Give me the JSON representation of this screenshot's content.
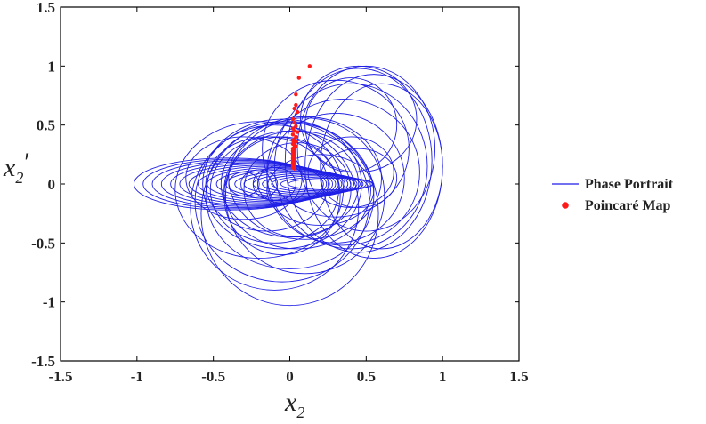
{
  "chart_data": {
    "type": "scatter",
    "title": "",
    "xlabel": {
      "base": "x",
      "sub": "2",
      "prime": ""
    },
    "ylabel": {
      "base": "x",
      "sub": "2",
      "prime": "′"
    },
    "xlim": [
      -1.5,
      1.5
    ],
    "ylim": [
      -1.5,
      1.5
    ],
    "xticks": [
      "-1.5",
      "-1",
      "-0.5",
      "0",
      "0.5",
      "1",
      "1.5"
    ],
    "yticks": [
      "-1.5",
      "-1",
      "-0.5",
      "0",
      "0.5",
      "1",
      "1.5"
    ],
    "grid": false,
    "legend_position": "right",
    "series": [
      {
        "name": "Phase Portrait",
        "kind": "line",
        "color": "#1f1fe6",
        "orbits": [
          {
            "cx": -0.4,
            "cy": 0.0,
            "rx": 0.62,
            "ry": 0.22
          },
          {
            "cx": -0.36,
            "cy": 0.0,
            "rx": 0.6,
            "ry": 0.21
          },
          {
            "cx": -0.32,
            "cy": 0.0,
            "rx": 0.58,
            "ry": 0.2
          },
          {
            "cx": -0.28,
            "cy": 0.0,
            "rx": 0.56,
            "ry": 0.19
          },
          {
            "cx": -0.24,
            "cy": 0.0,
            "rx": 0.54,
            "ry": 0.18
          },
          {
            "cx": -0.2,
            "cy": 0.0,
            "rx": 0.52,
            "ry": 0.17
          },
          {
            "cx": -0.16,
            "cy": 0.0,
            "rx": 0.5,
            "ry": 0.16
          },
          {
            "cx": -0.12,
            "cy": 0.0,
            "rx": 0.48,
            "ry": 0.15
          },
          {
            "cx": -0.08,
            "cy": 0.0,
            "rx": 0.46,
            "ry": 0.14
          },
          {
            "cx": -0.04,
            "cy": 0.0,
            "rx": 0.44,
            "ry": 0.13
          },
          {
            "cx": 0.0,
            "cy": 0.0,
            "rx": 0.42,
            "ry": 0.12
          },
          {
            "cx": 0.04,
            "cy": 0.0,
            "rx": 0.4,
            "ry": 0.11
          },
          {
            "cx": 0.08,
            "cy": 0.0,
            "rx": 0.38,
            "ry": 0.1
          },
          {
            "cx": 0.12,
            "cy": 0.0,
            "rx": 0.36,
            "ry": 0.09
          },
          {
            "cx": 0.16,
            "cy": 0.0,
            "rx": 0.34,
            "ry": 0.08
          },
          {
            "cx": 0.2,
            "cy": 0.0,
            "rx": 0.32,
            "ry": 0.07
          },
          {
            "cx": 0.24,
            "cy": 0.0,
            "rx": 0.3,
            "ry": 0.06
          },
          {
            "cx": 0.27,
            "cy": 0.0,
            "rx": 0.28,
            "ry": 0.05
          },
          {
            "cx": -0.3,
            "cy": 0.0,
            "rx": 0.1,
            "ry": 0.1
          },
          {
            "cx": -0.2,
            "cy": 0.0,
            "rx": 0.12,
            "ry": 0.12
          },
          {
            "cx": -0.1,
            "cy": 0.0,
            "rx": 0.14,
            "ry": 0.14
          },
          {
            "cx": -0.05,
            "cy": 0.0,
            "rx": 0.16,
            "ry": 0.16
          },
          {
            "cx": 0.4,
            "cy": 0.1,
            "rx": 0.28,
            "ry": 0.3
          },
          {
            "cx": 0.45,
            "cy": 0.05,
            "rx": 0.25,
            "ry": 0.25
          },
          {
            "cx": 0.2,
            "cy": -0.05,
            "rx": 0.35,
            "ry": 0.3
          },
          {
            "cx": -0.3,
            "cy": 0.05,
            "rx": 0.38,
            "ry": 0.35
          },
          {
            "cx": -0.15,
            "cy": 0.0,
            "rx": 0.4,
            "ry": 0.4
          },
          {
            "cx": -0.1,
            "cy": -0.05,
            "rx": 0.42,
            "ry": 0.45
          },
          {
            "cx": 0.0,
            "cy": 0.0,
            "rx": 0.45,
            "ry": 0.45
          },
          {
            "cx": 0.05,
            "cy": -0.05,
            "rx": 0.48,
            "ry": 0.5
          },
          {
            "cx": -0.05,
            "cy": 0.0,
            "rx": 0.52,
            "ry": 0.55
          },
          {
            "cx": 0.1,
            "cy": 0.05,
            "rx": 0.5,
            "ry": 0.52
          },
          {
            "cx": -0.2,
            "cy": -0.05,
            "rx": 0.55,
            "ry": 0.58
          },
          {
            "cx": 0.0,
            "cy": -0.1,
            "rx": 0.55,
            "ry": 0.62
          },
          {
            "cx": 0.1,
            "cy": -0.1,
            "rx": 0.52,
            "ry": 0.66
          },
          {
            "cx": -0.05,
            "cy": -0.15,
            "rx": 0.57,
            "ry": 0.68
          },
          {
            "cx": -0.1,
            "cy": -0.2,
            "rx": 0.55,
            "ry": 0.7
          },
          {
            "cx": 0.0,
            "cy": -0.25,
            "rx": 0.58,
            "ry": 0.78
          },
          {
            "cx": 0.3,
            "cy": 0.05,
            "rx": 0.45,
            "ry": 0.55
          },
          {
            "cx": 0.35,
            "cy": 0.1,
            "rx": 0.5,
            "ry": 0.62
          },
          {
            "cx": 0.4,
            "cy": 0.15,
            "rx": 0.5,
            "ry": 0.7
          },
          {
            "cx": 0.45,
            "cy": 0.2,
            "rx": 0.48,
            "ry": 0.78
          },
          {
            "cx": 0.5,
            "cy": 0.3,
            "rx": 0.45,
            "ry": 0.7
          },
          {
            "cx": 0.55,
            "cy": 0.15,
            "rx": 0.45,
            "ry": 0.78
          },
          {
            "cx": 0.6,
            "cy": 0.15,
            "rx": 0.4,
            "ry": 0.7
          },
          {
            "cx": 0.4,
            "cy": 0.5,
            "rx": 0.3,
            "ry": 0.4
          },
          {
            "cx": 0.45,
            "cy": 0.55,
            "rx": 0.38,
            "ry": 0.45
          },
          {
            "cx": 0.3,
            "cy": 0.3,
            "rx": 0.48,
            "ry": 0.58
          },
          {
            "cx": 0.05,
            "cy": -0.05,
            "rx": 0.35,
            "ry": 0.4
          },
          {
            "cx": -0.05,
            "cy": -0.1,
            "rx": 0.38,
            "ry": 0.5
          }
        ]
      },
      {
        "name": "Poincaré Map",
        "kind": "scatter",
        "color": "#ff1a1a",
        "x": [
          0.13,
          0.06,
          0.04,
          0.04,
          0.03,
          0.05,
          0.02,
          0.03,
          0.04,
          0.02,
          0.03,
          0.05,
          0.02,
          0.04,
          0.03,
          0.02,
          0.04,
          0.03,
          0.02,
          0.03,
          0.04,
          0.03,
          0.02,
          0.03,
          0.02,
          0.03,
          0.02,
          0.03,
          0.02,
          0.03,
          0.02,
          0.03,
          0.02,
          0.03,
          0.02,
          0.03,
          0.02,
          0.03,
          0.02,
          0.03
        ],
        "y": [
          1.0,
          0.9,
          0.76,
          0.67,
          0.64,
          0.61,
          0.55,
          0.52,
          0.49,
          0.47,
          0.45,
          0.44,
          0.42,
          0.4,
          0.38,
          0.37,
          0.36,
          0.35,
          0.34,
          0.33,
          0.32,
          0.31,
          0.3,
          0.29,
          0.28,
          0.27,
          0.26,
          0.25,
          0.24,
          0.23,
          0.22,
          0.21,
          0.2,
          0.19,
          0.18,
          0.17,
          0.16,
          0.15,
          0.14,
          0.13
        ]
      }
    ]
  }
}
